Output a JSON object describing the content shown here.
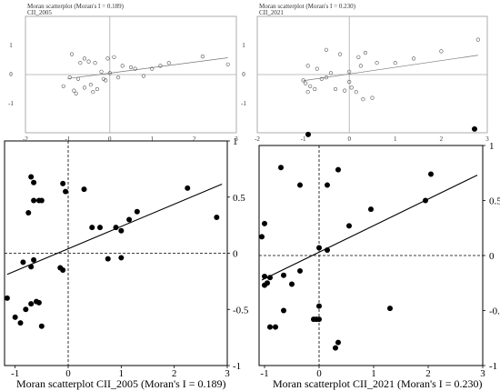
{
  "chart_data": [
    {
      "type": "scatter",
      "title": "Moran scatterplot (Moran's I = 0.189)",
      "subtitle": "CII_2005",
      "xlabel": "",
      "ylabel": "",
      "xlim": [
        -2,
        3
      ],
      "ylim": [
        -2,
        2
      ],
      "xticks": [
        "-2",
        "-1",
        "0",
        "1",
        "2",
        "3"
      ],
      "yticks": [
        "-1",
        "0",
        "1"
      ],
      "x": [
        -0.9,
        -0.7,
        -0.6,
        -0.5,
        -0.35,
        -0.2,
        -0.05,
        0.1,
        0.3,
        0.5,
        0.6,
        -0.95,
        -0.75,
        -0.6,
        -0.45,
        -0.3,
        -0.15,
        0.0,
        0.2,
        0.8,
        1.0,
        1.2,
        1.4,
        2.2,
        2.8,
        -0.85,
        -1.1,
        -0.8,
        -0.4,
        -0.1
      ],
      "y": [
        0.7,
        0.4,
        0.55,
        0.45,
        0.4,
        0.1,
        0.55,
        0.6,
        0.3,
        0.25,
        0.2,
        -0.1,
        -0.15,
        -0.45,
        -0.35,
        -0.5,
        -0.15,
        0.05,
        -0.1,
        -0.05,
        0.2,
        0.3,
        0.4,
        0.62,
        0.35,
        -0.55,
        -0.4,
        -0.65,
        -0.6,
        -0.2
      ],
      "fit": {
        "slope": 0.189,
        "intercept": 0.05
      }
    },
    {
      "type": "scatter",
      "title": "Moran scatterplot (Moran's I = 0.230)",
      "subtitle": "CII_2021",
      "xlabel": "",
      "ylabel": "",
      "xlim": [
        -2,
        3
      ],
      "ylim": [
        -2,
        2
      ],
      "xticks": [
        "-2",
        "-1",
        "0",
        "1",
        "2",
        "3"
      ],
      "yticks": [
        "-1",
        "0",
        "1"
      ],
      "x": [
        -0.9,
        -0.7,
        -0.5,
        -0.2,
        0.0,
        0.2,
        0.35,
        0.6,
        1.0,
        1.4,
        2.0,
        2.8,
        -1.0,
        -0.95,
        -0.85,
        -0.75,
        -0.6,
        -0.5,
        -0.4,
        -0.1,
        0.05,
        0.15,
        0.3,
        0.5,
        -0.9,
        -0.3,
        0.0,
        0.25
      ],
      "y": [
        0.3,
        0.2,
        0.85,
        0.7,
        0.1,
        0.6,
        0.75,
        0.4,
        0.4,
        0.55,
        0.8,
        1.2,
        -0.2,
        -0.3,
        -0.4,
        -0.5,
        -0.15,
        -0.1,
        0.05,
        -0.55,
        -0.45,
        -0.6,
        -0.85,
        -0.8,
        -0.6,
        -0.5,
        -0.25,
        0.3
      ],
      "fit": {
        "slope": 0.23,
        "intercept": 0.02
      }
    },
    {
      "type": "scatter",
      "xlabel": "Moran scatterplot CII_2005 (Moran's I = 0.189)",
      "ylabel": "",
      "xlim": [
        -1.2,
        3.0
      ],
      "ylim": [
        -1.0,
        1.0
      ],
      "xticks": [
        "-1",
        "0",
        "1",
        "2",
        "3"
      ],
      "yticks": [
        "1",
        "0.5",
        "0",
        "-0.5",
        "-1"
      ],
      "x": [
        -0.7,
        -0.65,
        -0.55,
        -0.5,
        -0.1,
        -0.05,
        0.3,
        0.45,
        0.6,
        0.9,
        1.0,
        1.15,
        1.3,
        2.25,
        2.8,
        -0.75,
        -0.65,
        -0.15,
        -0.1,
        0.75,
        1.0,
        -0.85,
        -0.7,
        -0.65,
        -0.6,
        -0.55,
        -1.15,
        -1.0,
        -0.9,
        -0.5,
        -0.8,
        -0.7
      ],
      "y": [
        0.68,
        0.47,
        0.47,
        0.47,
        0.62,
        0.55,
        0.57,
        0.23,
        0.23,
        0.23,
        0.2,
        0.3,
        0.37,
        0.58,
        0.32,
        0.36,
        0.63,
        -0.13,
        -0.15,
        -0.05,
        -0.04,
        -0.08,
        -0.12,
        -0.06,
        -0.43,
        -0.44,
        -0.4,
        -0.57,
        -0.62,
        -0.65,
        -0.5,
        -0.45
      ],
      "fit": {
        "slope": 0.189,
        "intercept": 0.04
      }
    },
    {
      "type": "scatter",
      "xlabel": "Moran scatterplot CII_2021 (Moran's I = 0.230)",
      "ylabel": "",
      "xlim": [
        -1.1,
        3.0
      ],
      "ylim": [
        -1.0,
        1.0
      ],
      "xticks": [
        "-1",
        "0",
        "1",
        "2",
        "3"
      ],
      "yticks": [
        "1",
        "0.5",
        "0",
        "-0.5",
        "-1"
      ],
      "x": [
        -1.05,
        -1.0,
        -0.7,
        -0.35,
        -0.2,
        0.0,
        0.15,
        0.35,
        0.55,
        0.95,
        1.95,
        2.05,
        2.85,
        0.15,
        -1.0,
        -0.95,
        -0.9,
        -0.8,
        -0.65,
        -0.5,
        -0.35,
        -0.1,
        0.0,
        0.3,
        0.35,
        1.3,
        -1.0,
        -0.9,
        -0.65,
        -0.05,
        0.0
      ],
      "y": [
        0.17,
        0.29,
        0.8,
        0.64,
        1.1,
        0.07,
        0.64,
        0.78,
        0.27,
        0.42,
        0.5,
        0.74,
        1.15,
        0.05,
        -0.19,
        -0.25,
        -0.2,
        -0.65,
        -0.18,
        -0.26,
        -0.14,
        -0.58,
        -0.46,
        -0.84,
        -0.79,
        -0.48,
        -0.27,
        -0.65,
        -0.5,
        -0.58,
        -0.58
      ],
      "fit": {
        "slope": 0.23,
        "intercept": 0.03
      }
    }
  ]
}
